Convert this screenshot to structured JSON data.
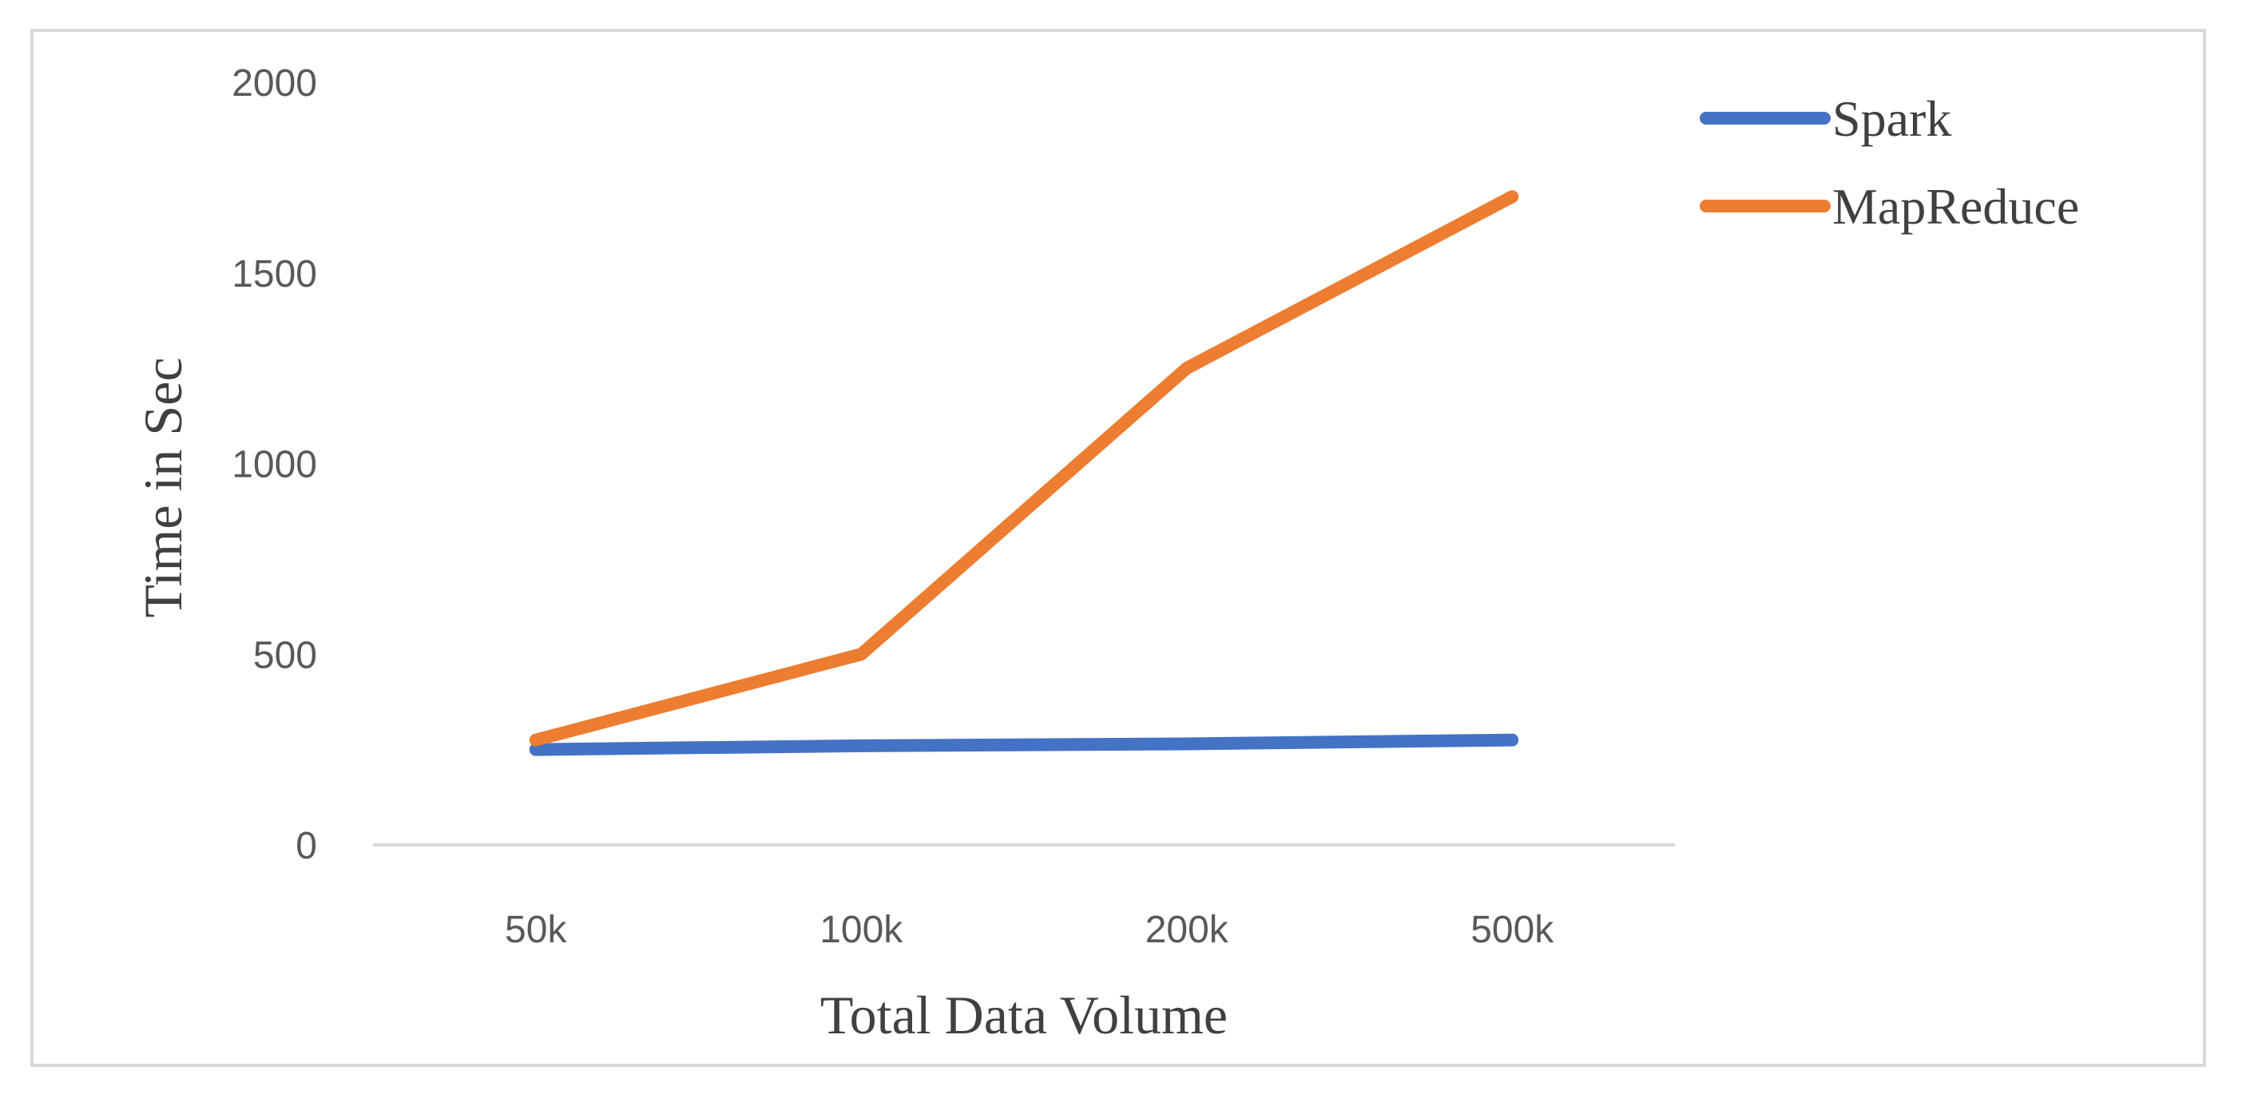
{
  "chart_data": {
    "type": "line",
    "title": "",
    "xlabel": "Total Data Volume",
    "ylabel": "Time in Sec",
    "categories": [
      "50k",
      "100k",
      "200k",
      "500k"
    ],
    "ylim": [
      0,
      2000
    ],
    "yticks": [
      0,
      500,
      1000,
      1500,
      2000
    ],
    "ytick_labels": [
      "0",
      "500",
      "1000",
      "1500",
      "2000"
    ],
    "grid": false,
    "legend_position": "top-right",
    "series": [
      {
        "name": "Spark",
        "color": "#4472C4",
        "values": [
          250,
          260,
          265,
          275
        ]
      },
      {
        "name": "MapReduce",
        "color": "#ED7D31",
        "values": [
          275,
          500,
          1250,
          1700
        ]
      }
    ]
  }
}
